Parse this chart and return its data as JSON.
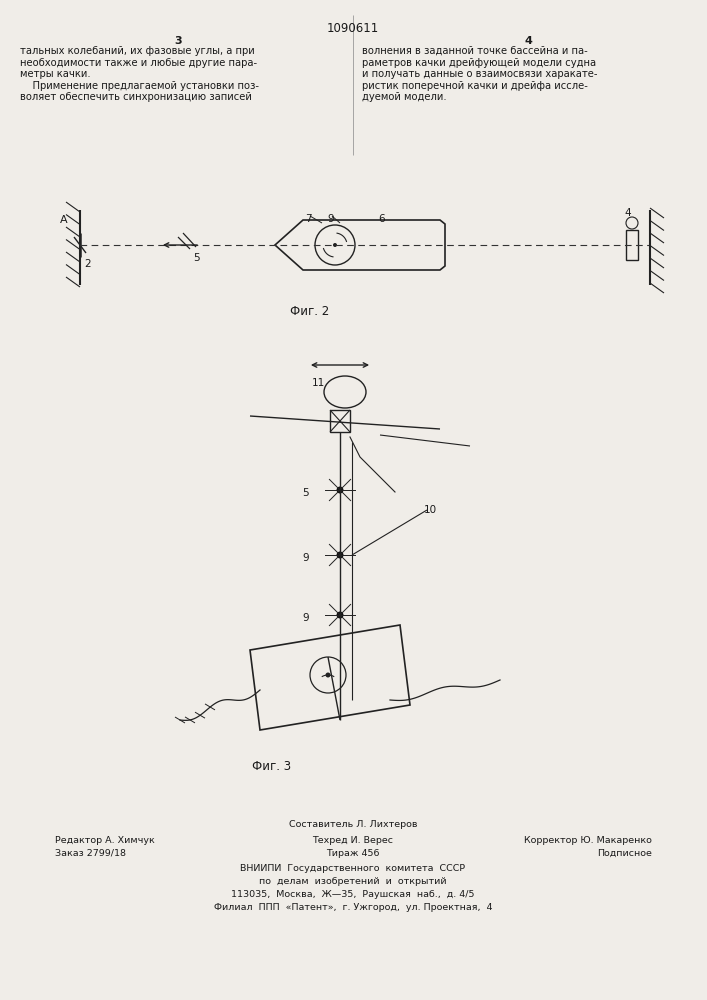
{
  "bg_color": "#f0ede8",
  "title": "1090611",
  "page_left": "3",
  "page_right": "4",
  "text_left": "тальных колебаний, их фазовые углы, а при\nнеобходимости также и любые другие пара-\nметры качки.\n    Применение предлагаемой установки поз-\nволяет обеспечить синхронизацию записей",
  "text_right": "волнения в заданной точке бассейна и па-\nраметров качки дрейфующей модели судна\nи получать данные о взаимосвязи харакате-\nристик поперечной качки и дрейфа иссле-\nдуемой модели.",
  "fig2_label": "Фиг. 2",
  "fig3_label": "Фиг. 3",
  "footer_line1": "Составитель Л. Лихтеров",
  "footer_line2_left": "Редактор А. Химчук",
  "footer_line2_mid": "Техред И. Верес",
  "footer_line2_right": "Корректор Ю. Макаренко",
  "footer_line3_left": "Заказ 2799/18",
  "footer_line3_mid": "Тираж 456",
  "footer_line3_right": "Подписное",
  "footer_line4": "ВНИИПИ  Государственного  комитета  СССР",
  "footer_line5": "по  делам  изобретений  и  открытий",
  "footer_line6": "113035,  Москва,  Ж—35,  Раушская  наб.,  д. 4/5",
  "footer_line7": "Филиал  ППП  «Патент»,  г. Ужгород,  ул. Проектная,  4"
}
